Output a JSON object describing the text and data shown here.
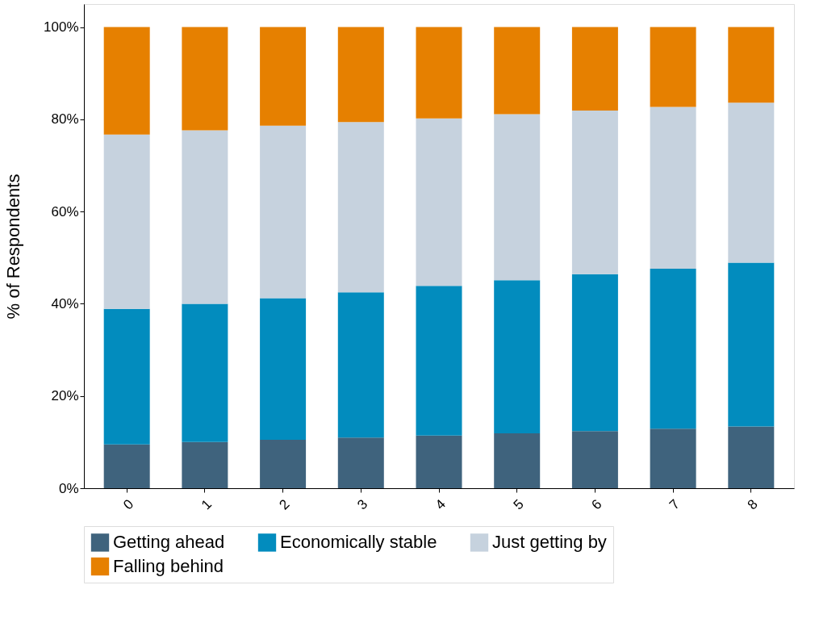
{
  "chart_data": {
    "type": "bar",
    "stacked": true,
    "ylabel": "% of Respondents",
    "categories": [
      "0",
      "1",
      "2",
      "3",
      "4",
      "5",
      "6",
      "7",
      "8"
    ],
    "series": [
      {
        "name": "Getting ahead",
        "color": "#3f637d",
        "values": [
          9.5,
          10.0,
          10.5,
          11.0,
          11.4,
          11.9,
          12.4,
          12.9,
          13.4
        ]
      },
      {
        "name": "Economically stable",
        "color": "#028cbe",
        "values": [
          29.4,
          30.0,
          30.7,
          31.5,
          32.5,
          33.2,
          34.0,
          34.7,
          35.5
        ]
      },
      {
        "name": "Just getting by",
        "color": "#c6d2de",
        "values": [
          37.8,
          37.6,
          37.4,
          36.9,
          36.3,
          36.0,
          35.5,
          35.1,
          34.7
        ]
      },
      {
        "name": "Falling behind",
        "color": "#e68000",
        "values": [
          23.3,
          22.4,
          21.4,
          20.6,
          19.8,
          18.9,
          18.1,
          17.3,
          16.4
        ]
      }
    ],
    "ylim": [
      0,
      105
    ],
    "yticks": [
      {
        "value": 0,
        "label": "0%"
      },
      {
        "value": 20,
        "label": "20%"
      },
      {
        "value": 40,
        "label": "40%"
      },
      {
        "value": 60,
        "label": "60%"
      },
      {
        "value": 80,
        "label": "80%"
      },
      {
        "value": 100,
        "label": "100%"
      }
    ],
    "grid": false,
    "legend": "bottom"
  }
}
